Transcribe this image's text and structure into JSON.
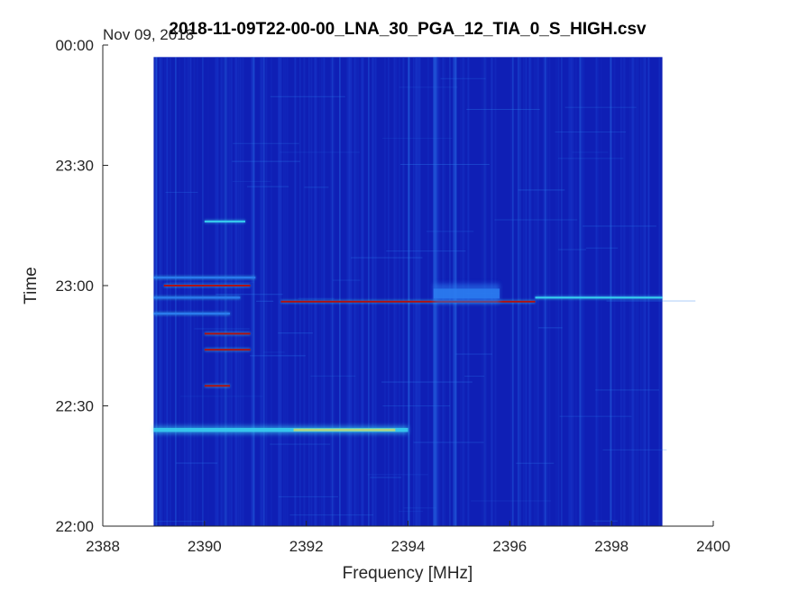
{
  "chart_data": {
    "type": "heatmap",
    "title": "2018-11-09T22-00-00_LNA_30_PGA_12_TIA_0_S_HIGH.csv",
    "date_label": "Nov 09, 2018",
    "xlabel": "Frequency [MHz]",
    "ylabel": "Time",
    "xlim": [
      2388,
      2400
    ],
    "ylim": [
      "22:00",
      "00:00"
    ],
    "x_ticks": [
      "2388",
      "2390",
      "2392",
      "2394",
      "2396",
      "2398",
      "2400"
    ],
    "x_tick_values": [
      2388,
      2390,
      2392,
      2394,
      2396,
      2398,
      2400
    ],
    "y_ticks": [
      "22:00",
      "22:30",
      "23:00",
      "23:30",
      "00:00"
    ],
    "y_tick_minutes": [
      0,
      30,
      60,
      90,
      120
    ],
    "data_extent": {
      "freq_min_mhz": 2389.0,
      "freq_max_mhz": 2399.0,
      "time_start": "22:00",
      "time_end": "23:57"
    },
    "colormap": "jet",
    "colors": {
      "background": "#0f1fb5",
      "stripe": "#1a3fd0",
      "weak": "#2b7cf0",
      "medium": "#38d0f0",
      "strong": "#ffe040",
      "peak": "#b01010"
    },
    "features": [
      {
        "type": "band",
        "freq_start": 2389.0,
        "freq_end": 2394.0,
        "minute": 24,
        "intensity": "medium"
      },
      {
        "type": "line",
        "freq_start": 2390.0,
        "freq_end": 2390.8,
        "minute": 76,
        "intensity": "medium"
      },
      {
        "type": "line",
        "freq_start": 2389.0,
        "freq_end": 2391.0,
        "minute": 62,
        "intensity": "weak"
      },
      {
        "type": "line",
        "freq_start": 2389.2,
        "freq_end": 2390.9,
        "minute": 60,
        "intensity": "peak"
      },
      {
        "type": "line",
        "freq_start": 2389.0,
        "freq_end": 2390.7,
        "minute": 57,
        "intensity": "weak"
      },
      {
        "type": "line",
        "freq_start": 2389.0,
        "freq_end": 2390.5,
        "minute": 53,
        "intensity": "weak"
      },
      {
        "type": "line",
        "freq_start": 2391.5,
        "freq_end": 2396.5,
        "minute": 56,
        "intensity": "peak"
      },
      {
        "type": "band",
        "freq_start": 2394.5,
        "freq_end": 2395.8,
        "minute": 58,
        "intensity": "weak"
      },
      {
        "type": "line",
        "freq_start": 2396.5,
        "freq_end": 2399.0,
        "minute": 57,
        "intensity": "medium"
      },
      {
        "type": "line",
        "freq_start": 2390.0,
        "freq_end": 2390.9,
        "minute": 48,
        "intensity": "peak"
      },
      {
        "type": "line",
        "freq_start": 2390.0,
        "freq_end": 2390.9,
        "minute": 44,
        "intensity": "peak"
      },
      {
        "type": "line",
        "freq_start": 2390.0,
        "freq_end": 2390.5,
        "minute": 35,
        "intensity": "peak"
      }
    ]
  }
}
